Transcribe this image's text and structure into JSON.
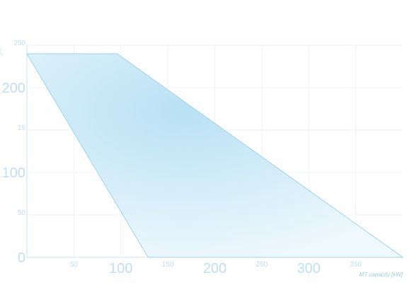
{
  "chart_data": {
    "type": "area",
    "title": "",
    "xlabel": "MT capacity [kW]",
    "ylabel": "",
    "xlim": [
      0,
      400
    ],
    "ylim": [
      0,
      250
    ],
    "grid": true,
    "x_ticks_small": [
      "50",
      "150",
      "250",
      "350"
    ],
    "x_ticks_big": [
      "100",
      "200",
      "300"
    ],
    "y_ticks_small": [
      "250",
      "15",
      "50"
    ],
    "y_ticks_big": [
      "200",
      "100",
      "0"
    ],
    "left_edge_label": "K",
    "region": {
      "name": "",
      "points": [
        {
          "x": 0,
          "y": 240
        },
        {
          "x": 96,
          "y": 240
        },
        {
          "x": 400,
          "y": 0
        },
        {
          "x": 129,
          "y": 0
        }
      ]
    },
    "colors": {
      "fill_center": "#b8e1f4",
      "fill_edge": "#eef8fd",
      "stroke": "#9fd3ea",
      "grid": "#eef3f6",
      "axis": "#c9e6f2"
    }
  }
}
